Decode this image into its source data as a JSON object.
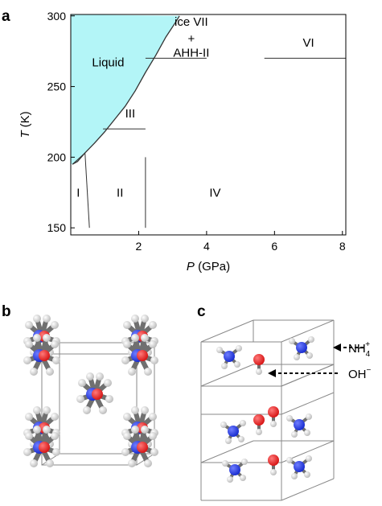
{
  "panels": {
    "a": "a",
    "b": "b",
    "c": "c"
  },
  "chart_data": {
    "type": "line",
    "xlabel_var": "P",
    "xlabel_unit": " (GPa)",
    "ylabel_var": "T",
    "ylabel_unit": " (K)",
    "xlim": [
      0,
      8.1
    ],
    "ylim": [
      145,
      301
    ],
    "xticks": [
      2,
      4,
      6,
      8
    ],
    "yticks": [
      150,
      200,
      250,
      300
    ],
    "grid": false,
    "liquid_fill_color": "#b3f5f7",
    "boundaries": [
      {
        "kind": "melting",
        "points": [
          [
            0.05,
            195
          ],
          [
            0.2,
            197
          ],
          [
            0.42,
            203
          ],
          [
            0.7,
            210
          ],
          [
            1.0,
            218
          ],
          [
            1.3,
            227
          ],
          [
            1.6,
            236
          ],
          [
            1.9,
            247
          ],
          [
            2.2,
            260
          ],
          [
            2.5,
            272
          ],
          [
            2.8,
            285
          ],
          [
            3.1,
            296
          ],
          [
            3.2,
            300
          ]
        ]
      },
      {
        "kind": "ice-Liquid",
        "points": [
          [
            0.05,
            195
          ],
          [
            0.42,
            203
          ]
        ]
      },
      {
        "kind": "I-II",
        "points": [
          [
            0.42,
            203
          ],
          [
            0.55,
            150
          ]
        ]
      },
      {
        "kind": "III-base",
        "points": [
          [
            0.95,
            220
          ],
          [
            2.2,
            220
          ]
        ]
      },
      {
        "kind": "II-IV",
        "points": [
          [
            2.2,
            200
          ],
          [
            2.2,
            150
          ]
        ]
      },
      {
        "kind": "VII-III",
        "points": [
          [
            2.2,
            270
          ],
          [
            4.0,
            270
          ]
        ]
      },
      {
        "kind": "VI-base",
        "points": [
          [
            5.7,
            270
          ],
          [
            8.1,
            270
          ]
        ]
      }
    ],
    "regions": [
      {
        "label": "Liquid",
        "x": 1.1,
        "y": 267
      },
      {
        "label": "III",
        "x": 1.75,
        "y": 231
      },
      {
        "label": "I",
        "x": 0.22,
        "y": 175
      },
      {
        "label": "II",
        "x": 1.45,
        "y": 175
      },
      {
        "label": "IV",
        "x": 4.25,
        "y": 175
      },
      {
        "label": "ice VII",
        "x": 3.55,
        "y": 296
      },
      {
        "label": "+",
        "x": 3.55,
        "y": 284
      },
      {
        "label": "AHH-II",
        "x": 3.55,
        "y": 274
      },
      {
        "label": "VI",
        "x": 7.0,
        "y": 281
      }
    ]
  },
  "structure_c": {
    "ion_nh4_label": "NH",
    "ion_nh4_sub": "4",
    "ion_nh4_sup": "+",
    "ion_oh_label": "OH",
    "ion_oh_sup": "−"
  },
  "colors": {
    "nitrogen": "#1b2fd0",
    "oxygen": "#d81818",
    "hydrogen": "#e6e6e6",
    "bond": "#707070",
    "cell_line": "#888888"
  }
}
